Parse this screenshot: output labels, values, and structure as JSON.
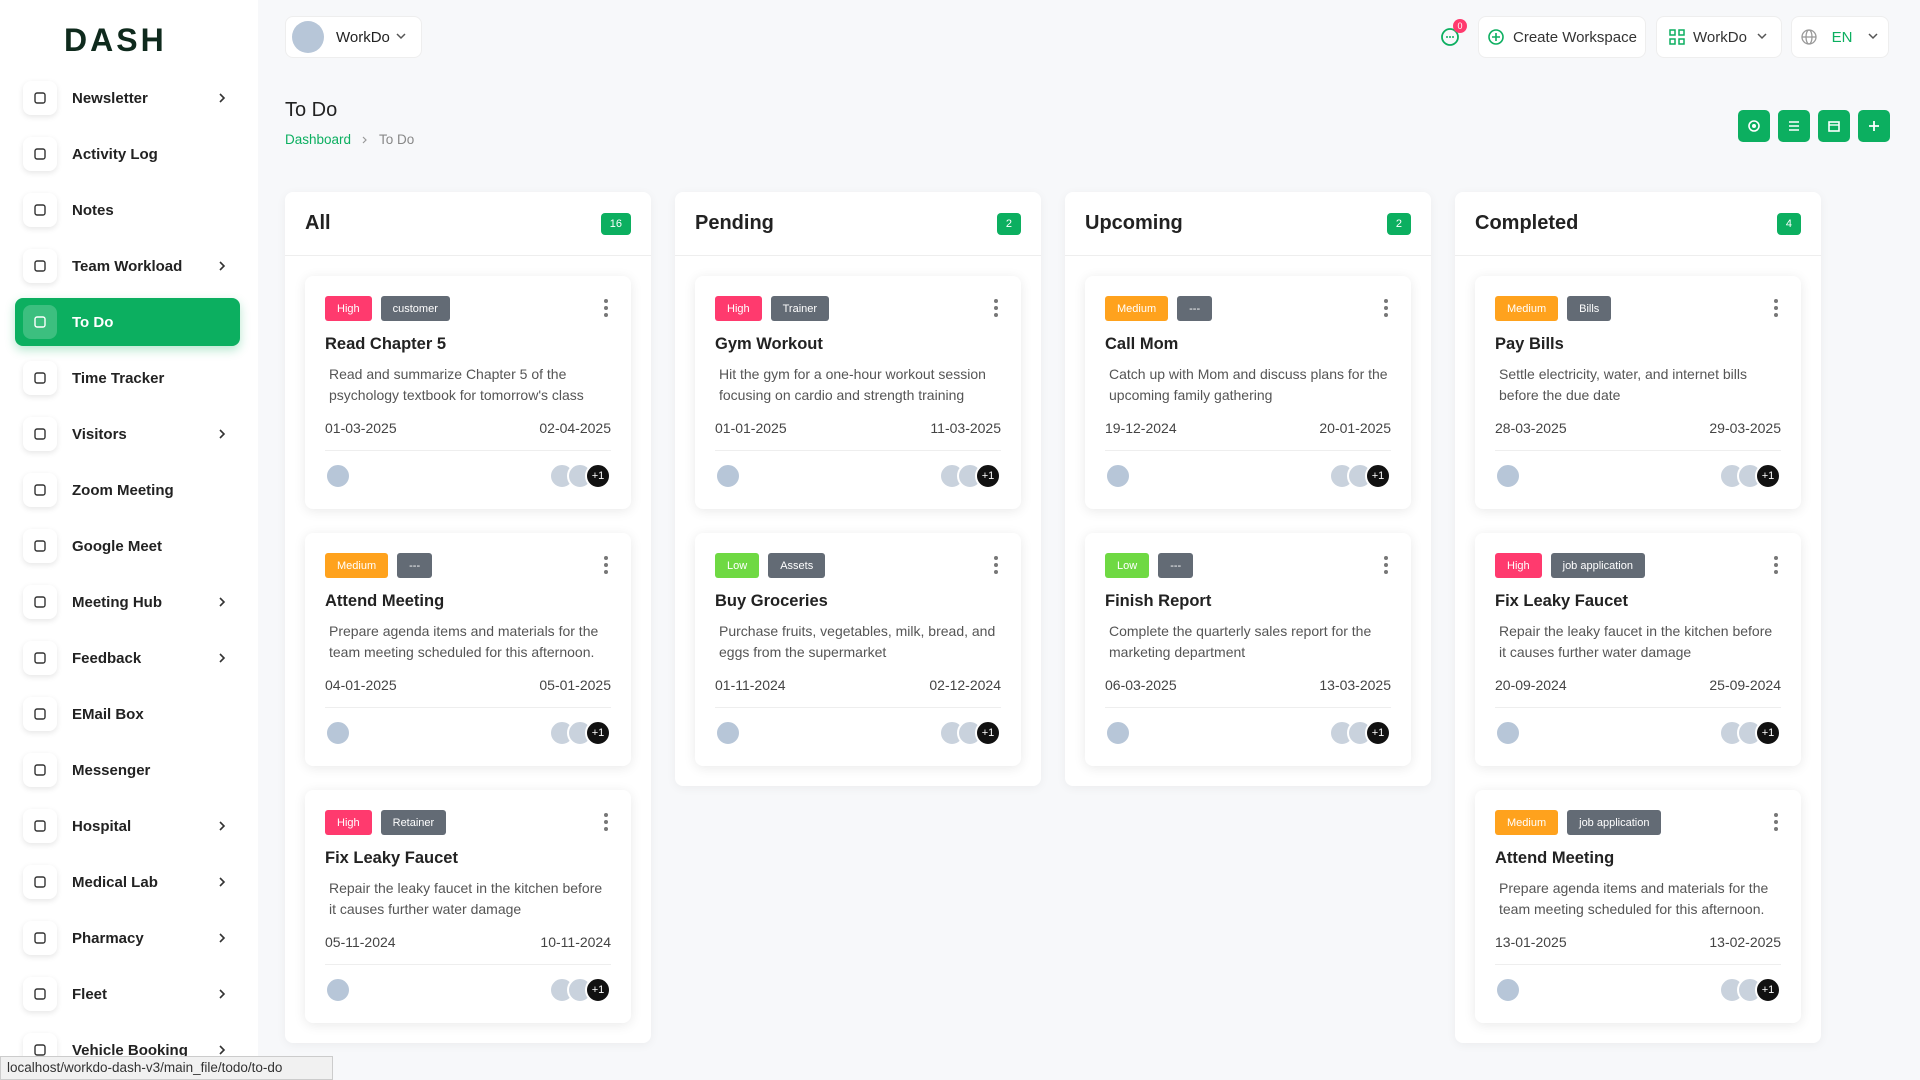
{
  "logo": "DASH",
  "header": {
    "workspace": "WorkDo",
    "notifications": 0,
    "create_workspace": "Create Workspace",
    "workspace_menu": "WorkDo",
    "language": "EN"
  },
  "sidebar": {
    "active": 4,
    "items": [
      {
        "label": "Newsletter",
        "submenu": true
      },
      {
        "label": "Activity Log",
        "submenu": false
      },
      {
        "label": "Notes",
        "submenu": false
      },
      {
        "label": "Team Workload",
        "submenu": true
      },
      {
        "label": "To Do",
        "submenu": false
      },
      {
        "label": "Time Tracker",
        "submenu": false
      },
      {
        "label": "Visitors",
        "submenu": true
      },
      {
        "label": "Zoom Meeting",
        "submenu": false
      },
      {
        "label": "Google Meet",
        "submenu": false
      },
      {
        "label": "Meeting Hub",
        "submenu": true
      },
      {
        "label": "Feedback",
        "submenu": true
      },
      {
        "label": "EMail Box",
        "submenu": false
      },
      {
        "label": "Messenger",
        "submenu": false
      },
      {
        "label": "Hospital",
        "submenu": true
      },
      {
        "label": "Medical Lab",
        "submenu": true
      },
      {
        "label": "Pharmacy",
        "submenu": true
      },
      {
        "label": "Fleet",
        "submenu": true
      },
      {
        "label": "Vehicle Booking",
        "submenu": true
      }
    ]
  },
  "page": {
    "title": "To Do",
    "breadcrumb": [
      "Dashboard",
      "To Do"
    ]
  },
  "board": {
    "columns": [
      {
        "name": "All",
        "count": 16,
        "cards": [
          {
            "priority": "High",
            "priority_color": "#ff3a6e",
            "tag": "customer",
            "title": "Read Chapter 5",
            "description": "Read and summarize Chapter 5 of the psychology textbook for tomorrow's class",
            "start": "01-03-2025",
            "end": "02-04-2025",
            "more": "+1"
          },
          {
            "priority": "Medium",
            "priority_color": "#ffa21d",
            "tag": "---",
            "title": "Attend Meeting",
            "description": "Prepare agenda items and materials for the team meeting scheduled for this afternoon.",
            "start": "04-01-2025",
            "end": "05-01-2025",
            "more": "+1"
          },
          {
            "priority": "High",
            "priority_color": "#ff3a6e",
            "tag": "Retainer",
            "title": "Fix Leaky Faucet",
            "description": "Repair the leaky faucet in the kitchen before it causes further water damage",
            "start": "05-11-2024",
            "end": "10-11-2024",
            "more": "+1"
          }
        ]
      },
      {
        "name": "Pending",
        "count": 2,
        "cards": [
          {
            "priority": "High",
            "priority_color": "#ff3a6e",
            "tag": "Trainer",
            "title": "Gym Workout",
            "description": "Hit the gym for a one-hour workout session focusing on cardio and strength training",
            "start": "01-01-2025",
            "end": "11-03-2025",
            "more": "+1"
          },
          {
            "priority": "Low",
            "priority_color": "#6fd943",
            "tag": "Assets",
            "title": "Buy Groceries",
            "description": "Purchase fruits, vegetables, milk, bread, and eggs from the supermarket",
            "start": "01-11-2024",
            "end": "02-12-2024",
            "more": "+1"
          }
        ]
      },
      {
        "name": "Upcoming",
        "count": 2,
        "cards": [
          {
            "priority": "Medium",
            "priority_color": "#ffa21d",
            "tag": "---",
            "title": "Call Mom",
            "description": "Catch up with Mom and discuss plans for the upcoming family gathering",
            "start": "19-12-2024",
            "end": "20-01-2025",
            "more": "+1"
          },
          {
            "priority": "Low",
            "priority_color": "#6fd943",
            "tag": "---",
            "title": "Finish Report",
            "description": "Complete the quarterly sales report for the marketing department",
            "start": "06-03-2025",
            "end": "13-03-2025",
            "more": "+1"
          }
        ]
      },
      {
        "name": "Completed",
        "count": 4,
        "cards": [
          {
            "priority": "Medium",
            "priority_color": "#ffa21d",
            "tag": "Bills",
            "title": "Pay Bills",
            "description": "Settle electricity, water, and internet bills before the due date",
            "start": "28-03-2025",
            "end": "29-03-2025",
            "more": "+1"
          },
          {
            "priority": "High",
            "priority_color": "#ff3a6e",
            "tag": "job application",
            "title": "Fix Leaky Faucet",
            "description": "Repair the leaky faucet in the kitchen before it causes further water damage",
            "start": "20-09-2024",
            "end": "25-09-2024",
            "more": "+1"
          },
          {
            "priority": "Medium",
            "priority_color": "#ffa21d",
            "tag": "job application",
            "title": "Attend Meeting",
            "description": "Prepare agenda items and materials for the team meeting scheduled for this afternoon.",
            "start": "13-01-2025",
            "end": "13-02-2025",
            "more": "+1"
          }
        ]
      }
    ]
  },
  "status_url": "localhost/workdo-dash-v3/main_file/todo/to-do"
}
